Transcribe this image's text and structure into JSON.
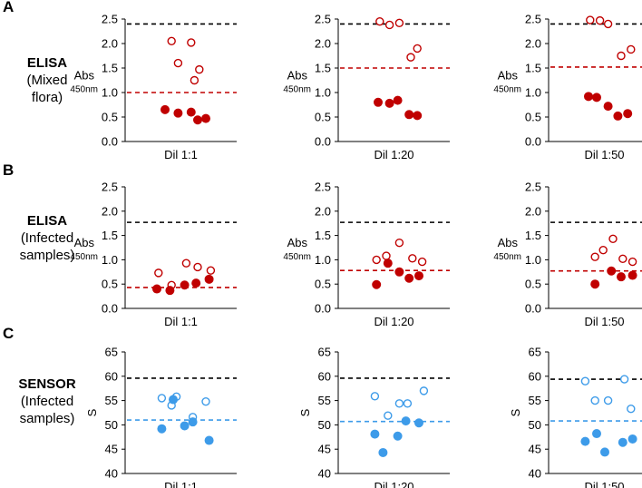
{
  "rows": [
    {
      "letter": "A",
      "side_title": "ELISA",
      "side_sub_lines": [
        "(Mixed",
        "flora)"
      ]
    },
    {
      "letter": "B",
      "side_title": "ELISA",
      "side_sub_lines": [
        "(Infected",
        "samples)"
      ]
    },
    {
      "letter": "C",
      "side_title": "SENSOR",
      "side_sub_lines": [
        "(Infected",
        "samples)"
      ]
    }
  ],
  "colors": {
    "red": "#c00000",
    "blue": "#3d9be9",
    "black_line": "#000000",
    "axis": "#000000"
  },
  "chart_data": [
    {
      "type": "scatter",
      "row": 0,
      "xlabel": "Dil 1:1",
      "ylabel": "Abs",
      "ylabel_sub": "450nm",
      "ylim": [
        0,
        2.5
      ],
      "yticks": [
        0,
        0.5,
        1,
        1.5,
        2,
        2.5
      ],
      "tick_format": "1",
      "color": "red",
      "black_threshold": 2.4,
      "colored_threshold": 1.0,
      "open_points": [
        {
          "x": -0.3,
          "y": 2.05
        },
        {
          "x": 0.3,
          "y": 2.02
        },
        {
          "x": -0.1,
          "y": 1.6
        },
        {
          "x": 0.55,
          "y": 1.47
        },
        {
          "x": 0.4,
          "y": 1.25
        }
      ],
      "filled_points": [
        {
          "x": -0.5,
          "y": 0.65
        },
        {
          "x": -0.1,
          "y": 0.58
        },
        {
          "x": 0.3,
          "y": 0.6
        },
        {
          "x": 0.5,
          "y": 0.44
        },
        {
          "x": 0.75,
          "y": 0.47
        }
      ]
    },
    {
      "type": "scatter",
      "row": 0,
      "xlabel": "Dil 1:20",
      "ylabel": "Abs",
      "ylabel_sub": "450nm",
      "ylim": [
        0,
        2.5
      ],
      "yticks": [
        0,
        0.5,
        1,
        1.5,
        2,
        2.5
      ],
      "tick_format": "1",
      "color": "red",
      "black_threshold": 2.4,
      "colored_threshold": 1.5,
      "open_points": [
        {
          "x": -0.45,
          "y": 2.45
        },
        {
          "x": -0.15,
          "y": 2.38
        },
        {
          "x": 0.15,
          "y": 2.42
        },
        {
          "x": 0.7,
          "y": 1.9
        },
        {
          "x": 0.5,
          "y": 1.72
        }
      ],
      "filled_points": [
        {
          "x": -0.5,
          "y": 0.8
        },
        {
          "x": -0.15,
          "y": 0.78
        },
        {
          "x": 0.1,
          "y": 0.84
        },
        {
          "x": 0.45,
          "y": 0.55
        },
        {
          "x": 0.7,
          "y": 0.53
        }
      ]
    },
    {
      "type": "scatter",
      "row": 0,
      "xlabel": "Dil 1:50",
      "ylabel": "Abs",
      "ylabel_sub": "450nm",
      "ylim": [
        0,
        2.5
      ],
      "yticks": [
        0,
        0.5,
        1,
        1.5,
        2,
        2.5
      ],
      "tick_format": "1",
      "color": "red",
      "black_threshold": 2.4,
      "colored_threshold": 1.52,
      "open_points": [
        {
          "x": -0.45,
          "y": 2.48
        },
        {
          "x": -0.15,
          "y": 2.47
        },
        {
          "x": 0.1,
          "y": 2.4
        },
        {
          "x": 0.8,
          "y": 1.88
        },
        {
          "x": 0.5,
          "y": 1.75
        }
      ],
      "filled_points": [
        {
          "x": -0.5,
          "y": 0.92
        },
        {
          "x": -0.25,
          "y": 0.9
        },
        {
          "x": 0.1,
          "y": 0.72
        },
        {
          "x": 0.4,
          "y": 0.52
        },
        {
          "x": 0.7,
          "y": 0.57
        }
      ]
    },
    {
      "type": "scatter",
      "row": 1,
      "xlabel": "Dil 1:1",
      "ylabel": "Abs",
      "ylabel_sub": "450nm",
      "ylim": [
        0,
        2.5
      ],
      "yticks": [
        0,
        0.5,
        1,
        1.5,
        2,
        2.5
      ],
      "tick_format": "1",
      "color": "red",
      "black_threshold": 1.77,
      "colored_threshold": 0.43,
      "open_points": [
        {
          "x": -0.7,
          "y": 0.73
        },
        {
          "x": 0.15,
          "y": 0.93
        },
        {
          "x": 0.5,
          "y": 0.85
        },
        {
          "x": 0.9,
          "y": 0.78
        },
        {
          "x": -0.3,
          "y": 0.48
        }
      ],
      "filled_points": [
        {
          "x": -0.75,
          "y": 0.4
        },
        {
          "x": -0.35,
          "y": 0.37
        },
        {
          "x": 0.1,
          "y": 0.48
        },
        {
          "x": 0.45,
          "y": 0.52
        },
        {
          "x": 0.85,
          "y": 0.6
        }
      ]
    },
    {
      "type": "scatter",
      "row": 1,
      "xlabel": "Dil 1:20",
      "ylabel": "Abs",
      "ylabel_sub": "450nm",
      "ylim": [
        0,
        2.5
      ],
      "yticks": [
        0,
        0.5,
        1,
        1.5,
        2,
        2.5
      ],
      "tick_format": "1",
      "color": "red",
      "black_threshold": 1.77,
      "colored_threshold": 0.78,
      "open_points": [
        {
          "x": 0.15,
          "y": 1.35
        },
        {
          "x": -0.25,
          "y": 1.08
        },
        {
          "x": 0.55,
          "y": 1.03
        },
        {
          "x": -0.55,
          "y": 1.0
        },
        {
          "x": 0.85,
          "y": 0.96
        }
      ],
      "filled_points": [
        {
          "x": -0.2,
          "y": 0.93
        },
        {
          "x": 0.15,
          "y": 0.75
        },
        {
          "x": 0.75,
          "y": 0.67
        },
        {
          "x": 0.45,
          "y": 0.62
        },
        {
          "x": -0.55,
          "y": 0.49
        }
      ]
    },
    {
      "type": "scatter",
      "row": 1,
      "xlabel": "Dil 1:50",
      "ylabel": "Abs",
      "ylabel_sub": "450nm",
      "ylim": [
        0,
        2.5
      ],
      "yticks": [
        0,
        0.5,
        1,
        1.5,
        2,
        2.5
      ],
      "tick_format": "1",
      "color": "red",
      "black_threshold": 1.77,
      "colored_threshold": 0.77,
      "open_points": [
        {
          "x": 0.25,
          "y": 1.43
        },
        {
          "x": -0.05,
          "y": 1.2
        },
        {
          "x": -0.3,
          "y": 1.06
        },
        {
          "x": 0.55,
          "y": 1.02
        },
        {
          "x": 0.85,
          "y": 0.96
        }
      ],
      "filled_points": [
        {
          "x": 0.2,
          "y": 0.77
        },
        {
          "x": 0.85,
          "y": 0.68
        },
        {
          "x": 0.5,
          "y": 0.65
        },
        {
          "x": -0.3,
          "y": 0.5
        }
      ]
    },
    {
      "type": "scatter",
      "row": 2,
      "xlabel": "Dil 1:1",
      "ylabel": "S",
      "ylim": [
        40,
        65
      ],
      "yticks": [
        40,
        45,
        50,
        55,
        60,
        65
      ],
      "tick_format": "0",
      "color": "blue",
      "black_threshold": 59.6,
      "colored_threshold": 51.0,
      "open_points": [
        {
          "x": -0.6,
          "y": 55.5
        },
        {
          "x": -0.15,
          "y": 55.8
        },
        {
          "x": 0.75,
          "y": 54.8
        },
        {
          "x": -0.3,
          "y": 54.0
        },
        {
          "x": 0.35,
          "y": 51.6
        }
      ],
      "filled_points": [
        {
          "x": -0.25,
          "y": 55.2
        },
        {
          "x": 0.35,
          "y": 50.6
        },
        {
          "x": 0.1,
          "y": 49.8
        },
        {
          "x": -0.6,
          "y": 49.2
        },
        {
          "x": 0.85,
          "y": 46.8
        }
      ]
    },
    {
      "type": "scatter",
      "row": 2,
      "xlabel": "Dil 1:20",
      "ylabel": "S",
      "ylim": [
        40,
        65
      ],
      "yticks": [
        40,
        45,
        50,
        55,
        60,
        65
      ],
      "tick_format": "0",
      "color": "blue",
      "black_threshold": 59.6,
      "colored_threshold": 50.7,
      "open_points": [
        {
          "x": 0.9,
          "y": 57.0
        },
        {
          "x": -0.6,
          "y": 55.9
        },
        {
          "x": 0.15,
          "y": 54.4
        },
        {
          "x": 0.4,
          "y": 54.4
        },
        {
          "x": -0.2,
          "y": 51.9
        }
      ],
      "filled_points": [
        {
          "x": 0.35,
          "y": 50.8
        },
        {
          "x": 0.75,
          "y": 50.4
        },
        {
          "x": -0.6,
          "y": 48.1
        },
        {
          "x": 0.1,
          "y": 47.7
        },
        {
          "x": -0.35,
          "y": 44.3
        }
      ]
    },
    {
      "type": "scatter",
      "row": 2,
      "xlabel": "Dil 1:50",
      "ylabel": "S",
      "ylim": [
        40,
        65
      ],
      "yticks": [
        40,
        45,
        50,
        55,
        60,
        65
      ],
      "tick_format": "0",
      "color": "blue",
      "black_threshold": 59.4,
      "colored_threshold": 50.8,
      "open_points": [
        {
          "x": -0.6,
          "y": 59.0
        },
        {
          "x": 0.6,
          "y": 59.4
        },
        {
          "x": -0.3,
          "y": 55.0
        },
        {
          "x": 0.1,
          "y": 55.0
        },
        {
          "x": 0.8,
          "y": 53.3
        }
      ],
      "filled_points": [
        {
          "x": -0.25,
          "y": 48.2
        },
        {
          "x": -0.6,
          "y": 46.6
        },
        {
          "x": 0.85,
          "y": 47.1
        },
        {
          "x": 0.55,
          "y": 46.4
        },
        {
          "x": 0.0,
          "y": 44.4
        }
      ]
    }
  ]
}
